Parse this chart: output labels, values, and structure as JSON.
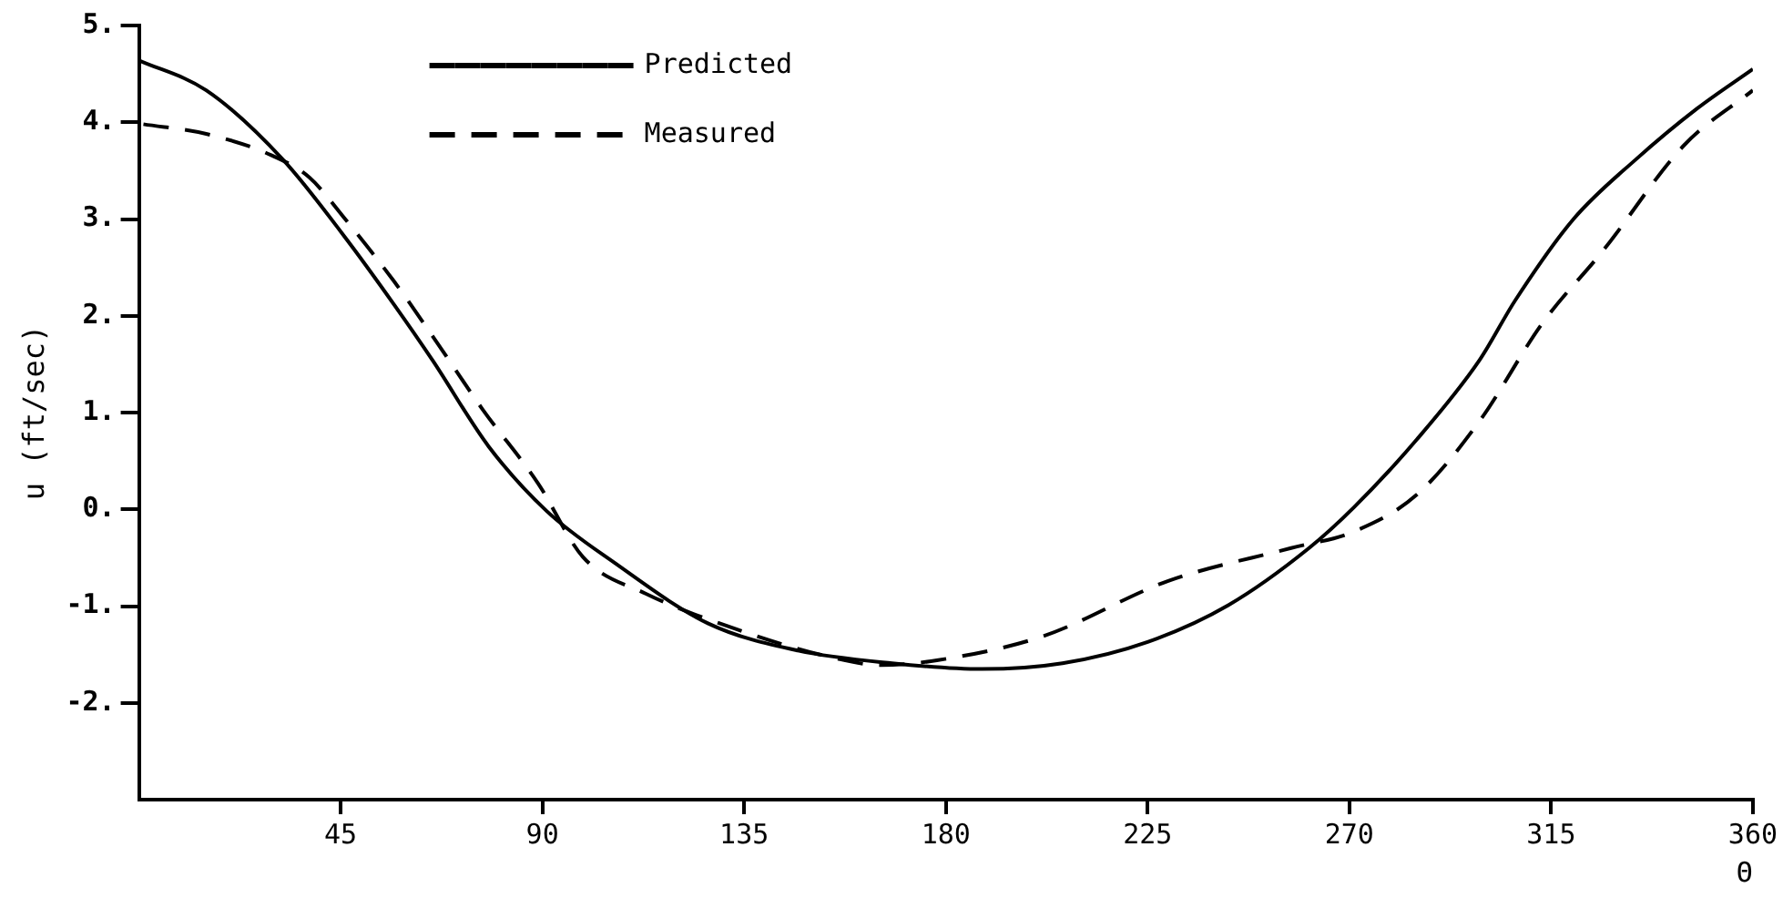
{
  "chart_data": {
    "type": "line",
    "xlabel": "Θ",
    "ylabel": "u (ft/sec)",
    "xlim": [
      0,
      360
    ],
    "xticks": [
      45,
      90,
      135,
      180,
      225,
      270,
      315,
      360
    ],
    "ylim": [
      -3,
      5
    ],
    "yticks": [
      {
        "value": 5,
        "label": "5."
      },
      {
        "value": 4,
        "label": "4."
      },
      {
        "value": 3,
        "label": "3."
      },
      {
        "value": 2,
        "label": "2."
      },
      {
        "value": 1,
        "label": "1."
      },
      {
        "value": 0,
        "label": "0."
      },
      {
        "value": -1,
        "label": "-1."
      },
      {
        "value": -2,
        "label": "-2."
      }
    ],
    "grid": false,
    "legend": "top",
    "marker": "none",
    "series": [
      {
        "name": "Predicted",
        "color": "#000000",
        "line_style": "solid",
        "x": [
          0,
          15,
          32,
          46,
          57,
          65.5,
          78,
          91,
          106,
          127,
          147,
          168,
          188,
          206,
          225,
          243,
          261,
          271,
          285,
          299,
          307,
          320,
          334,
          347.5,
          360
        ],
        "values": [
          4.64,
          4.33,
          3.62,
          2.81,
          2.11,
          1.54,
          0.65,
          -0.02,
          -0.55,
          -1.18,
          -1.46,
          -1.59,
          -1.65,
          -1.59,
          -1.37,
          -0.99,
          -0.4,
          0.02,
          0.72,
          1.54,
          2.16,
          3.0,
          3.62,
          4.14,
          4.55
        ]
      },
      {
        "name": "Measured",
        "color": "#000000",
        "line_style": "dashed",
        "x": [
          1,
          15,
          29.5,
          38,
          46,
          57,
          65.5,
          76.7,
          89,
          99,
          113,
          134,
          154.5,
          165.6,
          178,
          201.7,
          229.6,
          257,
          271,
          285,
          299,
          313,
          326.7,
          344.6,
          360
        ],
        "values": [
          3.98,
          3.88,
          3.66,
          3.43,
          3.0,
          2.35,
          1.79,
          1.03,
          0.27,
          -0.49,
          -0.87,
          -1.25,
          -1.53,
          -1.61,
          -1.56,
          -1.31,
          -0.74,
          -0.4,
          -0.23,
          0.15,
          0.91,
          1.92,
          2.68,
          3.76,
          4.33
        ]
      }
    ]
  }
}
